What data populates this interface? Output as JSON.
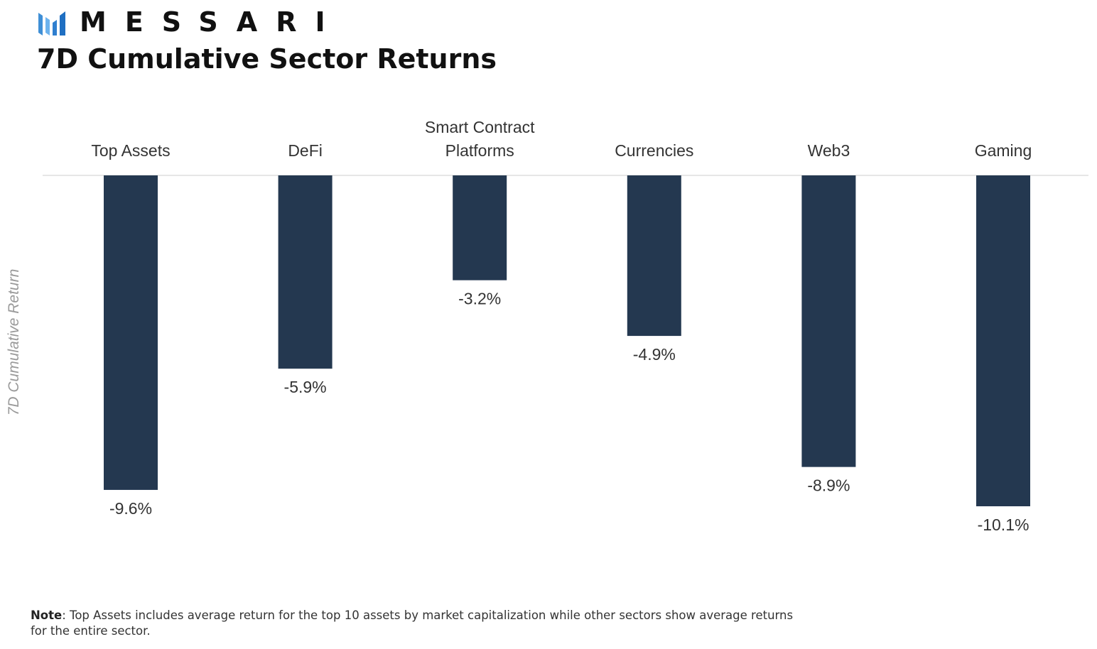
{
  "brand": {
    "name": "MESSARI",
    "logo_icon": "messari-logo-icon",
    "logo_color": "#3f8fd6",
    "text_color": "#111111"
  },
  "title": "7D Cumulative Sector Returns",
  "note": {
    "label": "Note",
    "text": ": Top Assets includes average return for the top 10 assets by market capitalization while other sectors show average returns for the entire sector."
  },
  "chart_data": {
    "type": "bar",
    "title": "7D Cumulative Sector Returns",
    "ylabel": "7D Cumulative Return",
    "xlabel": "",
    "categories": [
      [
        "Top Assets"
      ],
      [
        "DeFi"
      ],
      [
        "Smart Contract",
        "Platforms"
      ],
      [
        "Currencies"
      ],
      [
        "Web3"
      ],
      [
        "Gaming"
      ]
    ],
    "values": [
      -9.6,
      -5.9,
      -3.2,
      -4.9,
      -8.9,
      -10.1
    ],
    "value_labels": [
      "-9.6%",
      "-5.9%",
      "-3.2%",
      "-4.9%",
      "-8.9%",
      "-10.1%"
    ],
    "ylim": [
      -10.1,
      0
    ],
    "x_axis_position": "top",
    "grid": false,
    "legend": "none",
    "bar_color": "#243850",
    "axis_color": "#e6e6e6"
  }
}
